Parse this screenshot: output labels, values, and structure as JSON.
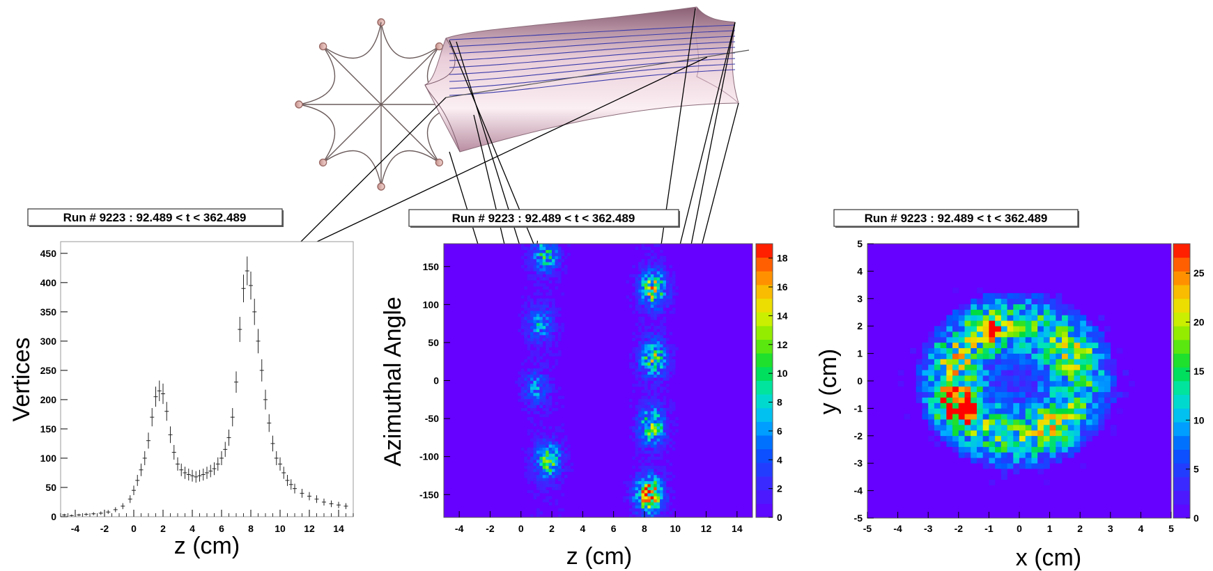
{
  "chart_data": [
    {
      "type": "scatter",
      "title": "Run # 9223 : 92.489 < t < 362.489",
      "xlabel": "z (cm)",
      "ylabel": "Vertices",
      "xlim": [
        -5,
        15
      ],
      "ylim": [
        0,
        470
      ],
      "xticks": [
        "-4",
        "-2",
        "0",
        "2",
        "4",
        "6",
        "8",
        "10",
        "12",
        "14"
      ],
      "yticks": [
        "0",
        "50",
        "100",
        "150",
        "200",
        "250",
        "300",
        "350",
        "400",
        "450"
      ],
      "error_bars": true,
      "x": [
        -4.75,
        -4.25,
        -3.75,
        -3.25,
        -2.75,
        -2.25,
        -1.75,
        -1.25,
        -0.75,
        -0.25,
        0.0,
        0.25,
        0.5,
        0.75,
        1.0,
        1.25,
        1.5,
        1.75,
        2.0,
        2.25,
        2.5,
        2.75,
        3.0,
        3.25,
        3.5,
        3.75,
        4.0,
        4.25,
        4.5,
        4.75,
        5.0,
        5.25,
        5.5,
        5.75,
        6.0,
        6.25,
        6.5,
        6.75,
        7.0,
        7.25,
        7.5,
        7.75,
        8.0,
        8.25,
        8.5,
        8.75,
        9.0,
        9.25,
        9.5,
        9.75,
        10.0,
        10.25,
        10.5,
        10.75,
        11.0,
        11.5,
        12.0,
        12.5,
        13.0,
        13.5,
        14.0,
        14.5
      ],
      "y": [
        3,
        2,
        3,
        4,
        5,
        6,
        8,
        12,
        18,
        30,
        45,
        62,
        80,
        100,
        130,
        170,
        205,
        215,
        210,
        180,
        140,
        110,
        90,
        80,
        75,
        72,
        70,
        68,
        70,
        72,
        75,
        78,
        82,
        90,
        100,
        115,
        135,
        170,
        230,
        320,
        390,
        420,
        395,
        350,
        300,
        250,
        200,
        160,
        125,
        100,
        90,
        75,
        62,
        55,
        48,
        40,
        35,
        30,
        25,
        22,
        20,
        18
      ]
    },
    {
      "type": "heatmap",
      "title": "Run # 9223 : 92.489 < t < 362.489",
      "xlabel": "z (cm)",
      "ylabel": "Azimuthal Angle",
      "xlim": [
        -5,
        15
      ],
      "ylim": [
        -180,
        180
      ],
      "xticks": [
        "-4",
        "-2",
        "0",
        "2",
        "4",
        "6",
        "8",
        "10",
        "12",
        "14"
      ],
      "yticks": [
        "-150",
        "-100",
        "-50",
        "0",
        "50",
        "100",
        "150"
      ],
      "colorbar": {
        "min": 0,
        "max": 19,
        "ticks": [
          "0",
          "2",
          "4",
          "6",
          "8",
          "10",
          "12",
          "14",
          "16",
          "18"
        ]
      },
      "clusters": [
        {
          "x": 1.6,
          "y": 165,
          "peak": 8
        },
        {
          "x": 1.2,
          "y": 75,
          "peak": 6
        },
        {
          "x": 1.0,
          "y": -10,
          "peak": 5
        },
        {
          "x": 1.8,
          "y": -105,
          "peak": 10
        },
        {
          "x": 8.6,
          "y": 120,
          "peak": 13
        },
        {
          "x": 8.6,
          "y": 30,
          "peak": 11
        },
        {
          "x": 8.5,
          "y": -60,
          "peak": 11
        },
        {
          "x": 8.3,
          "y": -150,
          "peak": 17
        }
      ]
    },
    {
      "type": "heatmap",
      "title": "Run # 9223 : 92.489 < t < 362.489",
      "xlabel": "x (cm)",
      "ylabel": "y (cm)",
      "xlim": [
        -5,
        5
      ],
      "ylim": [
        -5,
        5
      ],
      "xticks": [
        "-5",
        "-4",
        "-3",
        "-2",
        "-1",
        "0",
        "1",
        "2",
        "3",
        "4",
        "5"
      ],
      "yticks": [
        "-5",
        "-4",
        "-3",
        "-2",
        "-1",
        "0",
        "1",
        "2",
        "3",
        "4",
        "5"
      ],
      "colorbar": {
        "min": 0,
        "max": 28,
        "ticks": [
          "0",
          "5",
          "10",
          "15",
          "20",
          "25"
        ]
      },
      "ring": {
        "center": [
          -0.1,
          0.0
        ],
        "radius": 2.1,
        "level": 13
      },
      "hotspots": [
        {
          "x": -2.0,
          "y": -0.9,
          "peak": 27
        },
        {
          "x": -1.0,
          "y": 2.0,
          "peak": 17
        },
        {
          "x": 1.8,
          "y": 1.1,
          "peak": 14
        },
        {
          "x": 1.0,
          "y": -1.7,
          "peak": 15
        },
        {
          "x": -2.2,
          "y": 0.8,
          "peak": 13
        }
      ]
    }
  ]
}
